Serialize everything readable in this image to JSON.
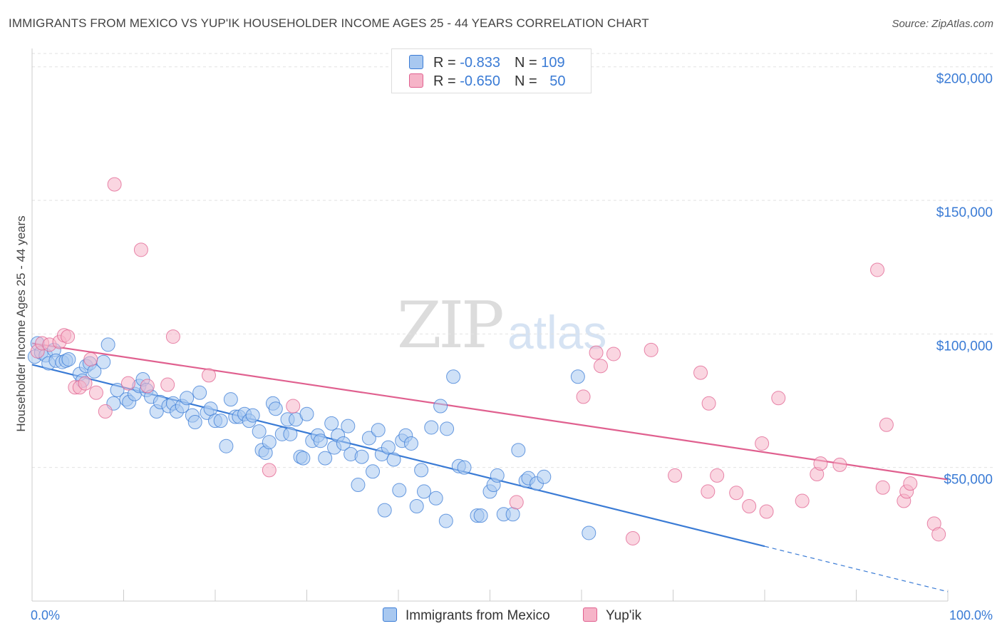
{
  "title": "IMMIGRANTS FROM MEXICO VS YUP'IK HOUSEHOLDER INCOME AGES 25 - 44 YEARS CORRELATION CHART",
  "source": "Source: ZipAtlas.com",
  "watermark": {
    "zip": "ZIP",
    "atlas": "atlas"
  },
  "legend": {
    "rows": [
      {
        "r_label": "R = ",
        "r_value": "-0.833",
        "n_label": "N = ",
        "n_value": "109",
        "color": "#a8c8f0"
      },
      {
        "r_label": "R = ",
        "r_value": "-0.650",
        "n_label": "N = ",
        "n_value": "50",
        "color": "#f6b4c8"
      }
    ]
  },
  "bottom_legend": [
    {
      "label": "Immigrants from Mexico",
      "color": "#a8c8f0"
    },
    {
      "label": "Yup'ik",
      "color": "#f6b4c8"
    }
  ],
  "chart_data": {
    "type": "scatter",
    "title": "IMMIGRANTS FROM MEXICO VS YUP'IK HOUSEHOLDER INCOME AGES 25 - 44 YEARS CORRELATION CHART",
    "xlabel": "",
    "ylabel": "Householder Income Ages 25 - 44 years",
    "xlim": [
      0,
      100
    ],
    "ylim": [
      0,
      205000
    ],
    "x_tick_labels": [
      "0.0%",
      "100.0%"
    ],
    "y_ticks": [
      50000,
      100000,
      150000,
      200000
    ],
    "y_tick_labels": [
      "$50,000",
      "$100,000",
      "$150,000",
      "$200,000"
    ],
    "grid": true,
    "legend_position": "top-center",
    "series": [
      {
        "name": "Immigrants from Mexico",
        "color": "#3a7bd5",
        "fill": "#a8c8f0",
        "trend": {
          "x0": 0,
          "y0": 88500,
          "x1": 80,
          "y1": 20500,
          "dashed_to_x": 100,
          "dashed_to_y": 3500
        },
        "points": [
          [
            0.3,
            91500
          ],
          [
            0.6,
            96500
          ],
          [
            1.0,
            93000
          ],
          [
            1.5,
            92000
          ],
          [
            1.8,
            89000
          ],
          [
            2.4,
            94000
          ],
          [
            2.6,
            90000
          ],
          [
            3.3,
            89500
          ],
          [
            3.7,
            90000
          ],
          [
            4.0,
            90500
          ],
          [
            5.2,
            85000
          ],
          [
            5.5,
            82500
          ],
          [
            5.9,
            88000
          ],
          [
            6.3,
            89000
          ],
          [
            6.8,
            86000
          ],
          [
            7.8,
            89500
          ],
          [
            8.3,
            96000
          ],
          [
            8.9,
            74000
          ],
          [
            9.3,
            79000
          ],
          [
            10.3,
            75500
          ],
          [
            10.6,
            74500
          ],
          [
            11.2,
            77500
          ],
          [
            11.7,
            80500
          ],
          [
            12.1,
            83000
          ],
          [
            12.5,
            79000
          ],
          [
            13.0,
            76500
          ],
          [
            13.6,
            71000
          ],
          [
            14.0,
            74500
          ],
          [
            14.9,
            73000
          ],
          [
            15.4,
            74000
          ],
          [
            15.8,
            71000
          ],
          [
            16.4,
            73000
          ],
          [
            16.9,
            76000
          ],
          [
            17.5,
            69500
          ],
          [
            17.8,
            67000
          ],
          [
            18.3,
            78000
          ],
          [
            19.1,
            70500
          ],
          [
            19.5,
            72000
          ],
          [
            20.0,
            67500
          ],
          [
            20.6,
            67500
          ],
          [
            21.2,
            58000
          ],
          [
            21.7,
            75500
          ],
          [
            22.2,
            69000
          ],
          [
            22.6,
            69000
          ],
          [
            23.2,
            70000
          ],
          [
            23.7,
            67500
          ],
          [
            24.1,
            69500
          ],
          [
            24.8,
            63500
          ],
          [
            25.1,
            56500
          ],
          [
            25.5,
            55500
          ],
          [
            25.9,
            59500
          ],
          [
            26.3,
            74000
          ],
          [
            26.6,
            72000
          ],
          [
            27.3,
            62500
          ],
          [
            27.9,
            68000
          ],
          [
            28.2,
            62500
          ],
          [
            28.8,
            68000
          ],
          [
            29.3,
            54000
          ],
          [
            29.6,
            53500
          ],
          [
            30.0,
            70000
          ],
          [
            30.6,
            60000
          ],
          [
            31.2,
            62000
          ],
          [
            31.5,
            60000
          ],
          [
            32.0,
            53500
          ],
          [
            32.7,
            66500
          ],
          [
            33.0,
            57500
          ],
          [
            33.4,
            62000
          ],
          [
            34.0,
            59000
          ],
          [
            34.5,
            65500
          ],
          [
            34.8,
            55000
          ],
          [
            35.6,
            43500
          ],
          [
            36.0,
            54000
          ],
          [
            36.8,
            61000
          ],
          [
            37.2,
            48500
          ],
          [
            37.8,
            64000
          ],
          [
            38.2,
            55000
          ],
          [
            38.5,
            34000
          ],
          [
            38.9,
            57500
          ],
          [
            39.5,
            53000
          ],
          [
            40.1,
            41500
          ],
          [
            40.4,
            60000
          ],
          [
            40.8,
            62000
          ],
          [
            41.4,
            59000
          ],
          [
            42.0,
            35500
          ],
          [
            42.5,
            49000
          ],
          [
            42.8,
            41000
          ],
          [
            43.6,
            65000
          ],
          [
            44.1,
            38500
          ],
          [
            44.6,
            73000
          ],
          [
            45.2,
            30000
          ],
          [
            45.3,
            64500
          ],
          [
            46.6,
            50500
          ],
          [
            47.2,
            50000
          ],
          [
            48.6,
            32000
          ],
          [
            49.0,
            32000
          ],
          [
            50.0,
            41000
          ],
          [
            50.4,
            43500
          ],
          [
            50.8,
            47000
          ],
          [
            51.5,
            32500
          ],
          [
            52.5,
            32500
          ],
          [
            53.1,
            56500
          ],
          [
            53.9,
            45000
          ],
          [
            54.2,
            46000
          ],
          [
            55.1,
            44000
          ],
          [
            55.9,
            46500
          ],
          [
            59.6,
            84000
          ],
          [
            60.8,
            25500
          ],
          [
            46.0,
            84000
          ]
        ]
      },
      {
        "name": "Yup'ik",
        "color": "#e0608f",
        "fill": "#f6b4c8",
        "trend": {
          "x0": 0,
          "y0": 96500,
          "x1": 100,
          "y1": 45500
        },
        "points": [
          [
            0.6,
            93500
          ],
          [
            1.1,
            96500
          ],
          [
            1.9,
            96000
          ],
          [
            3.0,
            97000
          ],
          [
            3.5,
            99500
          ],
          [
            3.9,
            99000
          ],
          [
            4.7,
            80000
          ],
          [
            5.2,
            80000
          ],
          [
            5.8,
            81500
          ],
          [
            6.4,
            90500
          ],
          [
            7.0,
            78000
          ],
          [
            8.0,
            71000
          ],
          [
            9.0,
            156000
          ],
          [
            10.5,
            81500
          ],
          [
            11.9,
            131500
          ],
          [
            12.6,
            80500
          ],
          [
            14.8,
            81000
          ],
          [
            15.4,
            99000
          ],
          [
            19.3,
            84500
          ],
          [
            25.9,
            49000
          ],
          [
            28.5,
            73000
          ],
          [
            52.9,
            37000
          ],
          [
            60.2,
            76500
          ],
          [
            61.6,
            93000
          ],
          [
            62.1,
            88000
          ],
          [
            63.5,
            92500
          ],
          [
            65.6,
            23500
          ],
          [
            67.6,
            94000
          ],
          [
            70.2,
            47000
          ],
          [
            73.0,
            85500
          ],
          [
            73.8,
            41000
          ],
          [
            73.9,
            74000
          ],
          [
            74.8,
            47000
          ],
          [
            76.9,
            40500
          ],
          [
            78.3,
            35500
          ],
          [
            79.7,
            59000
          ],
          [
            80.2,
            33500
          ],
          [
            81.5,
            76000
          ],
          [
            84.1,
            37500
          ],
          [
            85.7,
            47500
          ],
          [
            86.1,
            51500
          ],
          [
            88.2,
            51000
          ],
          [
            92.3,
            124000
          ],
          [
            92.9,
            42500
          ],
          [
            93.3,
            66000
          ],
          [
            95.2,
            37500
          ],
          [
            95.5,
            41000
          ],
          [
            95.9,
            44000
          ],
          [
            98.5,
            29000
          ],
          [
            99.0,
            25000
          ]
        ]
      }
    ]
  }
}
